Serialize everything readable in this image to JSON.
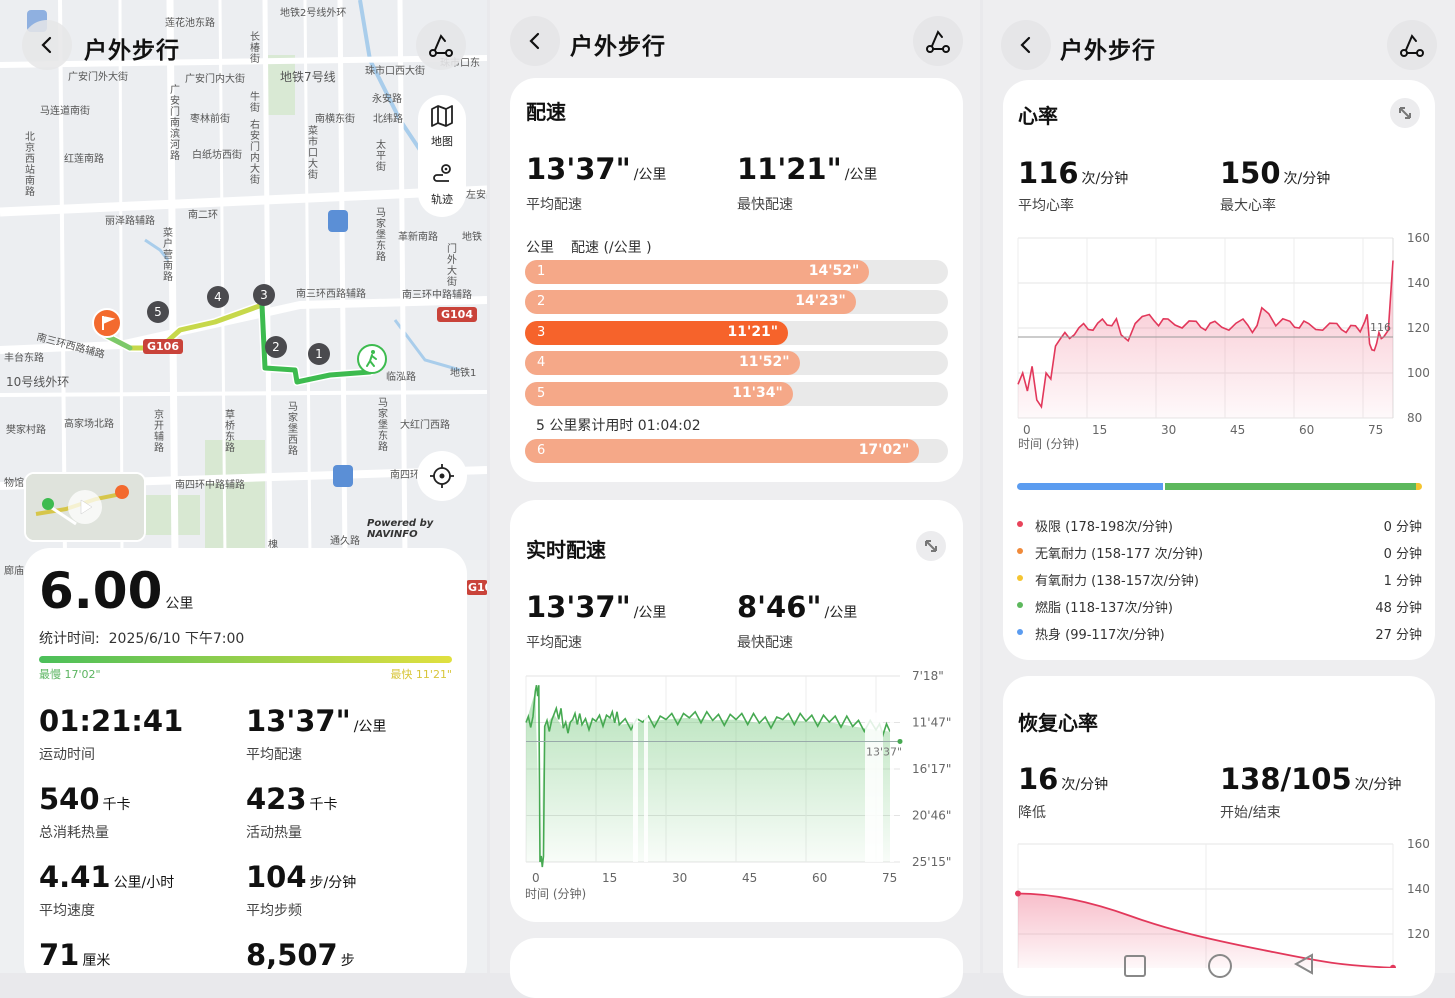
{
  "header": {
    "title": "户外步行"
  },
  "map": {
    "buttons": {
      "map": "地图",
      "track": "轨迹"
    },
    "credit": "Powered by NAVINFO",
    "labels": {
      "l1": "地铁2号线外环",
      "l2": "莲花池东路",
      "l3": "广安门外大街",
      "l4": "广安门内大街",
      "l5": "地铁7号线",
      "l6": "珠市口西大街",
      "l7": "珠市口东",
      "l8": "马连道南街",
      "l9": "枣林前街",
      "l10": "南横东街",
      "l11": "永安路",
      "l12": "北纬路",
      "l13": "红莲南路",
      "l14": "白纸坊西街",
      "l15": "丽泽路辅路",
      "l16": "南二环",
      "l17": "革新南路",
      "l18": "地铁",
      "l19": "南三环西路辅路",
      "l20": "南三环中路辅路",
      "l21": "丰台东路",
      "l22": "10号线外环",
      "l23": "樊家村路",
      "l24": "高家场北路",
      "l25": "临泓路",
      "l26": "地铁1",
      "l27": "大红门西路",
      "l28": "南四环中路辅路",
      "l29": "南四环",
      "l30": "通久路",
      "l31": "南三环西路辅路",
      "l32": "物馆",
      "l33": "廊庙",
      "l34": "左安门",
      "l35": "槐",
      "v1": "长椿街",
      "v2": "广安门南滨河路",
      "v3": "牛街",
      "v4": "右安门内大街",
      "v5": "菜市口大街",
      "v6": "太平街",
      "v7": "北京西站南路",
      "v8": "菜户营南路",
      "v9": "马家堡东路",
      "v10": "门外大街",
      "v11": "京开辅路",
      "v12": "草桥东路",
      "v13": "马家堡西路",
      "v14": "马家堡东路"
    },
    "markers": [
      "5",
      "4",
      "3",
      "2",
      "1"
    ],
    "road_badges": [
      "G106",
      "G104",
      "G104"
    ]
  },
  "summary": {
    "distance": "6.00",
    "distance_unit": "公里",
    "time_label": "统计时间:",
    "time_value": "2025/6/10 下午7:00",
    "slowest": "最慢 17'02\"",
    "fastest": "最快 11'21\"",
    "stats": [
      {
        "value": "01:21:41",
        "unit": "",
        "label": "运动时间"
      },
      {
        "value": "13'37\"",
        "unit": "/公里",
        "label": "平均配速"
      },
      {
        "value": "540",
        "unit": "千卡",
        "label": "总消耗热量"
      },
      {
        "value": "423",
        "unit": "千卡",
        "label": "活动热量"
      },
      {
        "value": "4.41",
        "unit": "公里/小时",
        "label": "平均速度"
      },
      {
        "value": "104",
        "unit": "步/分钟",
        "label": "平均步频"
      },
      {
        "value": "71",
        "unit": "厘米",
        "label": ""
      },
      {
        "value": "8,507",
        "unit": "步",
        "label": ""
      }
    ]
  },
  "pace": {
    "title": "配速",
    "avg_value": "13'37\"",
    "avg_unit": "/公里",
    "avg_label": "平均配速",
    "fast_value": "11'21\"",
    "fast_unit": "/公里",
    "fast_label": "最快配速",
    "col_km": "公里",
    "col_pace": "配速 (/公里 )",
    "note": "5 公里累计用时 01:04:02",
    "rows": [
      {
        "km": "1",
        "pace": "14'52\"",
        "fraction": 0.814,
        "color": "#f5a888"
      },
      {
        "km": "2",
        "pace": "14'23\"",
        "fraction": 0.782,
        "color": "#f5a888"
      },
      {
        "km": "3",
        "pace": "11'21\"",
        "fraction": 0.622,
        "color": "#f6632b"
      },
      {
        "km": "4",
        "pace": "11'52\"",
        "fraction": 0.649,
        "color": "#f5a888"
      },
      {
        "km": "5",
        "pace": "11'34\"",
        "fraction": 0.633,
        "color": "#f5a888"
      },
      {
        "km": "6",
        "pace": "17'02\"",
        "fraction": 0.932,
        "color": "#f5a888"
      }
    ]
  },
  "realtime": {
    "title": "实时配速",
    "avg_value": "13'37\"",
    "avg_unit": "/公里",
    "avg_label": "平均配速",
    "fast_value": "8'46\"",
    "fast_unit": "/公里",
    "fast_label": "最快配速",
    "x_title": "时间 (分钟)",
    "x_ticks": [
      "0",
      "15",
      "30",
      "45",
      "60",
      "75"
    ],
    "y_ticks": [
      "7'18\"",
      "11'47\"",
      "16'17\"",
      "20'46\"",
      "25'15\""
    ],
    "avg_marker": "13'37\""
  },
  "heart": {
    "title": "心率",
    "avg_value": "116",
    "avg_unit": "次/分钟",
    "avg_label": "平均心率",
    "max_value": "150",
    "max_unit": "次/分钟",
    "max_label": "最大心率",
    "x_title": "时间 (分钟)",
    "x_ticks": [
      "0",
      "15",
      "30",
      "45",
      "60",
      "75"
    ],
    "y_ticks": [
      "160",
      "140",
      "120",
      "100",
      "80"
    ],
    "avg_marker": "116",
    "zones": [
      {
        "name": "极限 (178-198次/分钟)",
        "minutes": "0 分钟",
        "color": "#e8435a"
      },
      {
        "name": "无氧耐力 (158-177 次/分钟)",
        "minutes": "0 分钟",
        "color": "#f08a3a"
      },
      {
        "name": "有氧耐力 (138-157次/分钟)",
        "minutes": "1 分钟",
        "color": "#f5c531"
      },
      {
        "name": "燃脂 (118-137次/分钟)",
        "minutes": "48 分钟",
        "color": "#5db85d"
      },
      {
        "name": "热身 (99-117次/分钟)",
        "minutes": "27 分钟",
        "color": "#5b9cf0"
      }
    ]
  },
  "recovery": {
    "title": "恢复心率",
    "drop_value": "16",
    "drop_unit": "次/分钟",
    "drop_label": "降低",
    "range_value": "138/105",
    "range_unit": "次/分钟",
    "range_label": "开始/结束",
    "y_ticks": [
      "160",
      "140",
      "120"
    ]
  },
  "chart_data": [
    {
      "type": "bar",
      "title": "配速",
      "categories": [
        "1",
        "2",
        "3",
        "4",
        "5",
        "6"
      ],
      "values": [
        "14'52\"",
        "14'23\"",
        "11'21\"",
        "11'52\"",
        "11'34\"",
        "17'02\""
      ]
    },
    {
      "type": "area",
      "title": "实时配速",
      "xlabel": "时间 (分钟)",
      "xlim": [
        0,
        80
      ],
      "y_scale": "pace, inverted (7'18\" at top, 25'15\" at bottom)",
      "series": [
        {
          "x": [
            0,
            2,
            3,
            4,
            6,
            8,
            10,
            12,
            15,
            18,
            20,
            25,
            30,
            35,
            40,
            45,
            50,
            55,
            60,
            65,
            70,
            75,
            78
          ],
          "y": [
            "11'47\"",
            "8'46\"",
            "25'15\"",
            "12'10\"",
            "11'00\"",
            "12'20\"",
            "11'30\"",
            "12'00\"",
            "11'40\"",
            "11'20\"",
            "12'00\"",
            "11'45\"",
            "11'30\"",
            "11'20\"",
            "11'35\"",
            "11'30\"",
            "11'50\"",
            "11'30\"",
            "11'40\"",
            "11'45\"",
            "12'10\"",
            "12'30\"",
            "12'40\""
          ]
        }
      ]
    },
    {
      "type": "area",
      "title": "心率",
      "xlabel": "时间 (分钟)",
      "xlim": [
        0,
        80
      ],
      "ylim": [
        80,
        160
      ],
      "series": [
        {
          "x": [
            0,
            1,
            2,
            3,
            4,
            5,
            6,
            8,
            10,
            12,
            14,
            16,
            18,
            20,
            22,
            25,
            28,
            30,
            32,
            35,
            38,
            40,
            42,
            45,
            48,
            50,
            52,
            55,
            58,
            60,
            62,
            65,
            68,
            70,
            72,
            74,
            75,
            76,
            77,
            78,
            79,
            80
          ],
          "y": [
            95,
            100,
            92,
            103,
            88,
            85,
            100,
            112,
            118,
            117,
            122,
            119,
            124,
            121,
            117,
            122,
            126,
            121,
            124,
            120,
            123,
            119,
            123,
            119,
            124,
            118,
            129,
            121,
            123,
            120,
            122,
            119,
            122,
            118,
            121,
            123,
            113,
            110,
            118,
            116,
            119,
            150
          ]
        }
      ]
    },
    {
      "type": "line",
      "title": "恢复心率",
      "ylim": [
        120,
        160
      ],
      "series": [
        {
          "x": [
            0,
            1,
            2
          ],
          "y": [
            138,
            120,
            105
          ]
        }
      ]
    }
  ]
}
